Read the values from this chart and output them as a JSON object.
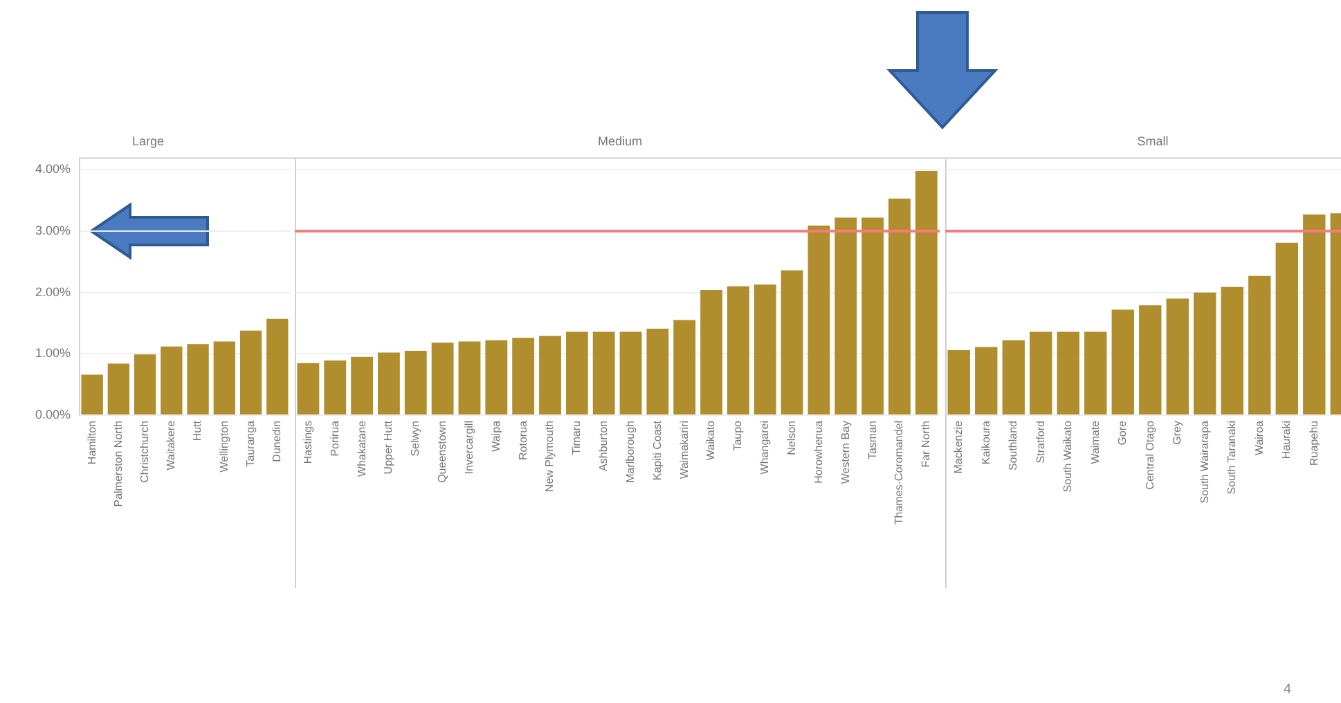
{
  "chart_data": [
    {
      "type": "bar",
      "title": "Large",
      "categories": [
        "Hamilton",
        "Palmerston North",
        "Christchurch",
        "Waitakere",
        "Hutt",
        "Wellington",
        "Tauranga",
        "Dunedin"
      ],
      "values": [
        0.66,
        0.84,
        0.99,
        1.12,
        1.16,
        1.2,
        1.38,
        1.57
      ],
      "color": "#b08e2e",
      "ylim": [
        0,
        4.2
      ],
      "yticks": [
        {
          "value": 0,
          "label": "0.00%"
        },
        {
          "value": 1,
          "label": "1.00%"
        },
        {
          "value": 2,
          "label": "2.00%"
        },
        {
          "value": 3,
          "label": "3.00%"
        },
        {
          "value": 4,
          "label": "4.00%"
        }
      ],
      "grid": "y"
    },
    {
      "type": "bar",
      "title": "Medium",
      "categories": [
        "Hastings",
        "Porirua",
        "Whakatane",
        "Upper Hutt",
        "Selwyn",
        "Queenstown",
        "Invercargill",
        "Waipa",
        "Rotorua",
        "New Plymouth",
        "Timaru",
        "Ashburton",
        "Marlborough",
        "Kapiti Coast",
        "Waimakariri",
        "Waikato",
        "Taupo",
        "Whangarei",
        "Nelson",
        "Horowhenua",
        "Western Bay",
        "Tasman",
        "Thames-Coromandel",
        "Far North"
      ],
      "values": [
        0.85,
        0.89,
        0.95,
        1.02,
        1.05,
        1.18,
        1.2,
        1.22,
        1.26,
        1.29,
        1.36,
        1.36,
        1.36,
        1.41,
        1.55,
        2.04,
        2.1,
        2.13,
        2.36,
        3.09,
        3.22,
        3.22,
        3.53,
        3.98
      ],
      "color": "#b08e2e",
      "ylim": [
        0,
        4.2
      ],
      "yticks": [
        0,
        1,
        2,
        3,
        4
      ],
      "grid": "y",
      "tick_labels": "x",
      "ref_lines": [
        {
          "axis": "y",
          "value": 3,
          "color": "#f47c7c"
        }
      ]
    },
    {
      "type": "bar",
      "title": "Small",
      "categories": [
        "Mackenzie",
        "Kaikoura",
        "Southland",
        "Stratford",
        "South Waikato",
        "Waimate",
        "Gore",
        "Central Otago",
        "Grey",
        "South Wairarapa",
        "South Taranaki",
        "Wairoa",
        "Hauraki",
        "Ruapehu",
        null
      ],
      "values": [
        1.06,
        1.11,
        1.22,
        1.36,
        1.36,
        1.36,
        1.72,
        1.79,
        1.9,
        2.0,
        2.09,
        2.27,
        2.81,
        3.27,
        3.29
      ],
      "color": "#b08e2e",
      "ylim": [
        0,
        4.2
      ],
      "yticks": [
        0,
        1,
        2,
        3,
        4
      ],
      "grid": "y",
      "tick_labels": "x",
      "ref_lines": [
        {
          "axis": "y",
          "value": 3,
          "color": "#f47c7c"
        }
      ],
      "annotations": [
        "4"
      ]
    }
  ]
}
